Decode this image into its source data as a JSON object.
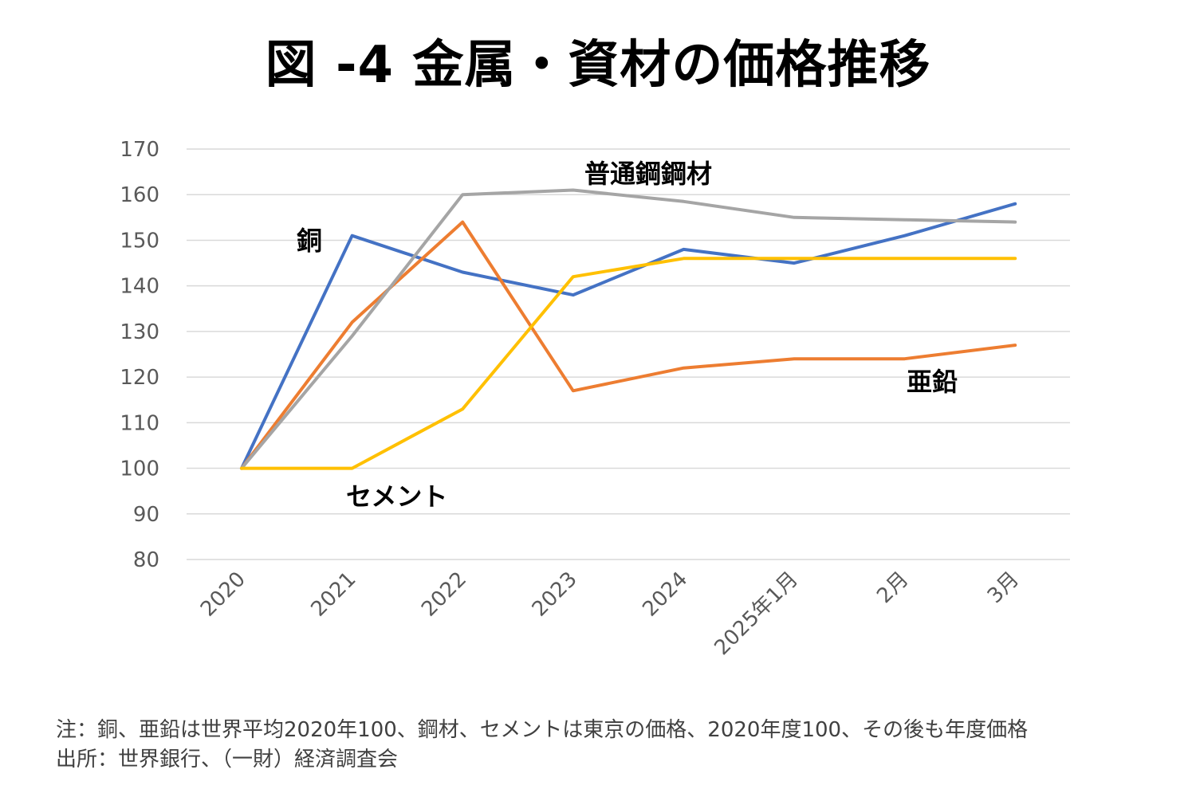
{
  "title": "図 -4 金属・資材の価格推移",
  "chart_data": {
    "type": "line",
    "categories": [
      "2020",
      "2021",
      "2022",
      "2023",
      "2024",
      "2025年1月",
      "2月",
      "3月"
    ],
    "ylim": [
      80,
      170
    ],
    "yticks": [
      80,
      90,
      100,
      110,
      120,
      130,
      140,
      150,
      160,
      170
    ],
    "grid": true,
    "series": [
      {
        "name": "銅",
        "color": "#4472C4",
        "values": [
          100,
          151,
          143,
          138,
          148,
          145,
          151,
          158
        ]
      },
      {
        "name": "亜鉛",
        "color": "#ED7D31",
        "values": [
          100,
          132,
          154,
          117,
          122,
          124,
          124,
          127
        ]
      },
      {
        "name": "普通鋼鋼材",
        "color": "#A5A5A5",
        "values": [
          100,
          129,
          160,
          161,
          158.5,
          155,
          154.5,
          154
        ]
      },
      {
        "name": "セメント",
        "color": "#FFC000",
        "values": [
          100,
          100,
          113,
          142,
          146,
          146,
          146,
          146
        ]
      }
    ]
  },
  "notes": {
    "line1": "注：銅、亜鉛は世界平均2020年100、鋼材、セメントは東京の価格、2020年度100、その後も年度価格",
    "line2": "出所：世界銀行、（一財）経済調査会"
  }
}
